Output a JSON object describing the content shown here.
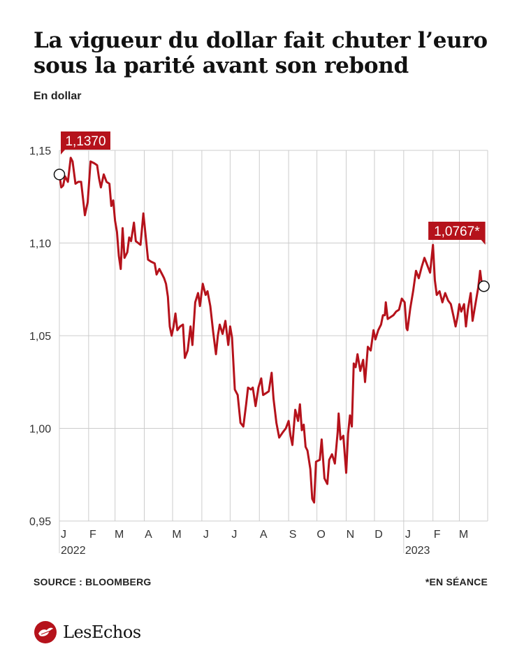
{
  "title": "La vigueur du dollar fait chuter l’euro sous la parité avant son rebond",
  "subtitle": "En dollar",
  "source": "SOURCE : BLOOMBERG",
  "note": "*EN SÉANCE",
  "logo_text": "LesEchos",
  "colors": {
    "line": "#b5121b",
    "grid": "#cccccc",
    "label_bg": "#b5121b"
  },
  "chart_data": {
    "type": "line",
    "title": "La vigueur du dollar fait chuter l’euro sous la parité avant son rebond",
    "ylabel": "En dollar",
    "ylim": [
      0.95,
      1.15
    ],
    "yticks": [
      {
        "value": 1.15,
        "label": "1,15"
      },
      {
        "value": 1.1,
        "label": "1,10"
      },
      {
        "value": 1.05,
        "label": "1,05"
      },
      {
        "value": 1.0,
        "label": "1,00"
      },
      {
        "value": 0.95,
        "label": "0,95"
      }
    ],
    "xlim": [
      "2022-01-01",
      "2023-03-31"
    ],
    "xticks": [
      {
        "date": "2022-01-01",
        "label": "J"
      },
      {
        "date": "2022-02-01",
        "label": "F"
      },
      {
        "date": "2022-03-01",
        "label": "M"
      },
      {
        "date": "2022-04-01",
        "label": "A"
      },
      {
        "date": "2022-05-01",
        "label": "M"
      },
      {
        "date": "2022-06-01",
        "label": "J"
      },
      {
        "date": "2022-07-01",
        "label": "J"
      },
      {
        "date": "2022-08-01",
        "label": "A"
      },
      {
        "date": "2022-09-01",
        "label": "S"
      },
      {
        "date": "2022-10-01",
        "label": "O"
      },
      {
        "date": "2022-11-01",
        "label": "N"
      },
      {
        "date": "2022-12-01",
        "label": "D"
      },
      {
        "date": "2023-01-01",
        "label": "J"
      },
      {
        "date": "2023-02-01",
        "label": "F"
      },
      {
        "date": "2023-03-01",
        "label": "M"
      }
    ],
    "year_labels": [
      {
        "date": "2022-01-01",
        "label": "2022"
      },
      {
        "date": "2023-01-01",
        "label": "2023"
      }
    ],
    "grid": true,
    "annotations": [
      {
        "date": "2022-01-01",
        "value": 1.137,
        "label": "1,1370",
        "side": "right"
      },
      {
        "date": "2023-03-27",
        "value": 1.0767,
        "label": "1,0767*",
        "side": "left"
      }
    ],
    "series": [
      {
        "points": [
          [
            "2022-01-01",
            1.137
          ],
          [
            "2022-01-03",
            1.13
          ],
          [
            "2022-01-05",
            1.131
          ],
          [
            "2022-01-07",
            1.136
          ],
          [
            "2022-01-10",
            1.133
          ],
          [
            "2022-01-13",
            1.146
          ],
          [
            "2022-01-15",
            1.144
          ],
          [
            "2022-01-18",
            1.132
          ],
          [
            "2022-01-21",
            1.133
          ],
          [
            "2022-01-24",
            1.133
          ],
          [
            "2022-01-28",
            1.115
          ],
          [
            "2022-01-31",
            1.122
          ],
          [
            "2022-02-03",
            1.144
          ],
          [
            "2022-02-07",
            1.143
          ],
          [
            "2022-02-10",
            1.142
          ],
          [
            "2022-02-12",
            1.135
          ],
          [
            "2022-02-14",
            1.13
          ],
          [
            "2022-02-17",
            1.137
          ],
          [
            "2022-02-20",
            1.133
          ],
          [
            "2022-02-23",
            1.132
          ],
          [
            "2022-02-25",
            1.12
          ],
          [
            "2022-02-27",
            1.123
          ],
          [
            "2022-03-01",
            1.112
          ],
          [
            "2022-03-03",
            1.106
          ],
          [
            "2022-03-05",
            1.093
          ],
          [
            "2022-03-07",
            1.086
          ],
          [
            "2022-03-09",
            1.108
          ],
          [
            "2022-03-11",
            1.092
          ],
          [
            "2022-03-14",
            1.095
          ],
          [
            "2022-03-16",
            1.103
          ],
          [
            "2022-03-18",
            1.101
          ],
          [
            "2022-03-21",
            1.111
          ],
          [
            "2022-03-23",
            1.101
          ],
          [
            "2022-03-28",
            1.099
          ],
          [
            "2022-03-31",
            1.116
          ],
          [
            "2022-04-02",
            1.106
          ],
          [
            "2022-04-05",
            1.091
          ],
          [
            "2022-04-08",
            1.09
          ],
          [
            "2022-04-12",
            1.089
          ],
          [
            "2022-04-14",
            1.083
          ],
          [
            "2022-04-17",
            1.086
          ],
          [
            "2022-04-20",
            1.083
          ],
          [
            "2022-04-22",
            1.081
          ],
          [
            "2022-04-24",
            1.078
          ],
          [
            "2022-04-26",
            1.071
          ],
          [
            "2022-04-28",
            1.055
          ],
          [
            "2022-04-30",
            1.05
          ],
          [
            "2022-05-02",
            1.055
          ],
          [
            "2022-05-04",
            1.062
          ],
          [
            "2022-05-06",
            1.053
          ],
          [
            "2022-05-09",
            1.055
          ],
          [
            "2022-05-12",
            1.056
          ],
          [
            "2022-05-14",
            1.038
          ],
          [
            "2022-05-17",
            1.042
          ],
          [
            "2022-05-20",
            1.055
          ],
          [
            "2022-05-22",
            1.045
          ],
          [
            "2022-05-25",
            1.068
          ],
          [
            "2022-05-28",
            1.073
          ],
          [
            "2022-05-30",
            1.066
          ],
          [
            "2022-06-02",
            1.078
          ],
          [
            "2022-06-05",
            1.072
          ],
          [
            "2022-06-07",
            1.074
          ],
          [
            "2022-06-10",
            1.066
          ],
          [
            "2022-06-13",
            1.052
          ],
          [
            "2022-06-16",
            1.04
          ],
          [
            "2022-06-18",
            1.05
          ],
          [
            "2022-06-20",
            1.056
          ],
          [
            "2022-06-23",
            1.051
          ],
          [
            "2022-06-26",
            1.058
          ],
          [
            "2022-06-29",
            1.045
          ],
          [
            "2022-07-01",
            1.055
          ],
          [
            "2022-07-03",
            1.049
          ],
          [
            "2022-07-06",
            1.021
          ],
          [
            "2022-07-09",
            1.018
          ],
          [
            "2022-07-12",
            1.003
          ],
          [
            "2022-07-15",
            1.001
          ],
          [
            "2022-07-18",
            1.013
          ],
          [
            "2022-07-20",
            1.022
          ],
          [
            "2022-07-23",
            1.021
          ],
          [
            "2022-07-25",
            1.022
          ],
          [
            "2022-07-28",
            1.012
          ],
          [
            "2022-07-31",
            1.022
          ],
          [
            "2022-08-03",
            1.027
          ],
          [
            "2022-08-05",
            1.018
          ],
          [
            "2022-08-08",
            1.019
          ],
          [
            "2022-08-11",
            1.02
          ],
          [
            "2022-08-14",
            1.03
          ],
          [
            "2022-08-16",
            1.016
          ],
          [
            "2022-08-19",
            1.003
          ],
          [
            "2022-08-22",
            0.995
          ],
          [
            "2022-08-26",
            0.998
          ],
          [
            "2022-08-29",
            1.0
          ],
          [
            "2022-09-01",
            1.004
          ],
          [
            "2022-09-03",
            0.996
          ],
          [
            "2022-09-05",
            0.991
          ],
          [
            "2022-09-08",
            1.01
          ],
          [
            "2022-09-11",
            1.004
          ],
          [
            "2022-09-13",
            1.013
          ],
          [
            "2022-09-15",
            0.999
          ],
          [
            "2022-09-17",
            1.002
          ],
          [
            "2022-09-19",
            0.99
          ],
          [
            "2022-09-21",
            0.988
          ],
          [
            "2022-09-24",
            0.978
          ],
          [
            "2022-09-26",
            0.962
          ],
          [
            "2022-09-28",
            0.96
          ],
          [
            "2022-09-30",
            0.982
          ],
          [
            "2022-10-04",
            0.983
          ],
          [
            "2022-10-06",
            0.994
          ],
          [
            "2022-10-09",
            0.973
          ],
          [
            "2022-10-12",
            0.97
          ],
          [
            "2022-10-14",
            0.983
          ],
          [
            "2022-10-17",
            0.986
          ],
          [
            "2022-10-20",
            0.981
          ],
          [
            "2022-10-23",
            0.998
          ],
          [
            "2022-10-24",
            1.008
          ],
          [
            "2022-10-26",
            0.994
          ],
          [
            "2022-10-29",
            0.996
          ],
          [
            "2022-11-01",
            0.976
          ],
          [
            "2022-11-03",
            0.997
          ],
          [
            "2022-11-05",
            1.007
          ],
          [
            "2022-11-07",
            1.001
          ],
          [
            "2022-11-09",
            1.035
          ],
          [
            "2022-11-11",
            1.033
          ],
          [
            "2022-11-13",
            1.04
          ],
          [
            "2022-11-16",
            1.031
          ],
          [
            "2022-11-19",
            1.037
          ],
          [
            "2022-11-21",
            1.025
          ],
          [
            "2022-11-24",
            1.044
          ],
          [
            "2022-11-27",
            1.042
          ],
          [
            "2022-11-30",
            1.053
          ],
          [
            "2022-12-02",
            1.048
          ],
          [
            "2022-12-05",
            1.053
          ],
          [
            "2022-12-08",
            1.056
          ],
          [
            "2022-12-10",
            1.061
          ],
          [
            "2022-12-12",
            1.061
          ],
          [
            "2022-12-13",
            1.068
          ],
          [
            "2022-12-15",
            1.059
          ],
          [
            "2022-12-18",
            1.06
          ],
          [
            "2022-12-21",
            1.061
          ],
          [
            "2022-12-24",
            1.063
          ],
          [
            "2022-12-27",
            1.064
          ],
          [
            "2022-12-30",
            1.07
          ],
          [
            "2023-01-02",
            1.068
          ],
          [
            "2023-01-04",
            1.054
          ],
          [
            "2023-01-05",
            1.053
          ],
          [
            "2023-01-08",
            1.065
          ],
          [
            "2023-01-11",
            1.074
          ],
          [
            "2023-01-14",
            1.085
          ],
          [
            "2023-01-17",
            1.081
          ],
          [
            "2023-01-20",
            1.087
          ],
          [
            "2023-01-23",
            1.092
          ],
          [
            "2023-01-26",
            1.088
          ],
          [
            "2023-01-29",
            1.084
          ],
          [
            "2023-02-01",
            1.099
          ],
          [
            "2023-02-03",
            1.08
          ],
          [
            "2023-02-05",
            1.072
          ],
          [
            "2023-02-08",
            1.074
          ],
          [
            "2023-02-11",
            1.068
          ],
          [
            "2023-02-14",
            1.073
          ],
          [
            "2023-02-17",
            1.069
          ],
          [
            "2023-02-20",
            1.067
          ],
          [
            "2023-02-23",
            1.06
          ],
          [
            "2023-02-25",
            1.055
          ],
          [
            "2023-02-27",
            1.06
          ],
          [
            "2023-03-01",
            1.067
          ],
          [
            "2023-03-03",
            1.063
          ],
          [
            "2023-03-06",
            1.067
          ],
          [
            "2023-03-08",
            1.055
          ],
          [
            "2023-03-10",
            1.064
          ],
          [
            "2023-03-13",
            1.073
          ],
          [
            "2023-03-15",
            1.058
          ],
          [
            "2023-03-17",
            1.064
          ],
          [
            "2023-03-19",
            1.07
          ],
          [
            "2023-03-21",
            1.076
          ],
          [
            "2023-03-23",
            1.085
          ],
          [
            "2023-03-25",
            1.077
          ],
          [
            "2023-03-27",
            1.0767
          ]
        ]
      }
    ]
  }
}
